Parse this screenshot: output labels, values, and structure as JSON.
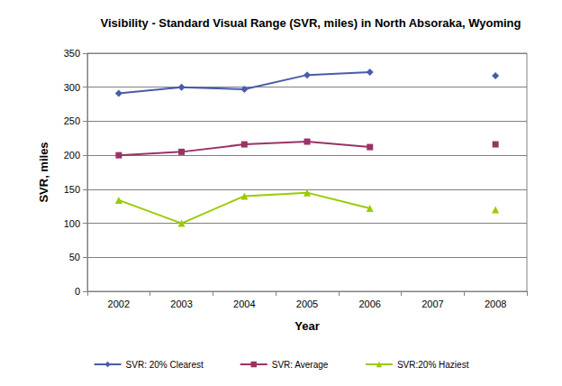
{
  "chart_data": {
    "type": "line",
    "title": "Visibility - Standard Visual Range (SVR, miles) in North Absoraka, Wyoming",
    "x_label": "Year",
    "y_label": "SVR, miles",
    "categories": [
      "2002",
      "2003",
      "2004",
      "2005",
      "2006",
      "2007",
      "2008"
    ],
    "series": [
      {
        "name": "SVR: 20% Clearest",
        "color": "#4a5ba8",
        "marker": "diamond",
        "values": [
          291,
          300,
          297,
          318,
          322,
          null,
          317
        ]
      },
      {
        "name": "SVR: Average",
        "color": "#993366",
        "marker": "square",
        "values": [
          200,
          205,
          216,
          220,
          212,
          null,
          216
        ]
      },
      {
        "name": "SVR:20% Haziest",
        "color": "#99cc00",
        "marker": "triangle",
        "values": [
          134,
          100,
          140,
          145,
          122,
          null,
          120
        ]
      }
    ],
    "ylim": [
      0,
      350
    ],
    "yticks": [
      0,
      50,
      100,
      150,
      200,
      250,
      300,
      350
    ],
    "grid": true,
    "legend": "bottom"
  }
}
